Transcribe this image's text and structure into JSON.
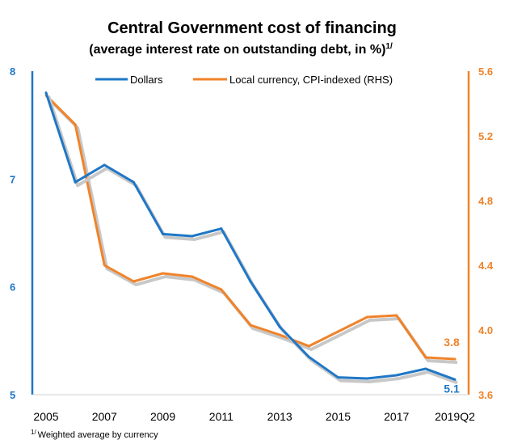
{
  "colors": {
    "dollars": "#1f77c6",
    "local": "#f0832a",
    "shadow": "#c8c8c8",
    "axis_left": "#1f77c6",
    "axis_right": "#f0832a"
  },
  "chart_data": {
    "type": "line",
    "title": "Central Government cost of financing",
    "subtitle": "(average interest rate on outstanding debt, in %)",
    "subtitle_sup": "1/",
    "categories": [
      "2005",
      "2006",
      "2007",
      "2008",
      "2009",
      "2010",
      "2011",
      "2012",
      "2013",
      "2014",
      "2015",
      "2016",
      "2017",
      "2018",
      "2019Q2"
    ],
    "x_tick_labels": [
      "2005",
      "2007",
      "2009",
      "2011",
      "2013",
      "2015",
      "2017",
      "2019Q2"
    ],
    "x_tick_indices": [
      0,
      2,
      4,
      6,
      8,
      10,
      12,
      14
    ],
    "y_left": {
      "min": 5,
      "max": 8,
      "ticks": [
        "5",
        "6",
        "7",
        "8"
      ]
    },
    "y_right": {
      "min": 3.6,
      "max": 5.6,
      "ticks": [
        "3.6",
        "4.0",
        "4.4",
        "4.8",
        "5.2",
        "5.6"
      ]
    },
    "series": [
      {
        "name": "Dollars",
        "axis": "left",
        "values": [
          7.8,
          6.97,
          7.13,
          6.97,
          6.49,
          6.47,
          6.54,
          6.05,
          5.63,
          5.35,
          5.16,
          5.15,
          5.18,
          5.24,
          5.14
        ]
      },
      {
        "name": "Local currency, CPI-indexed (RHS)",
        "axis": "right",
        "values": [
          5.45,
          5.27,
          4.4,
          4.3,
          4.35,
          4.33,
          4.25,
          4.03,
          3.97,
          3.9,
          3.99,
          4.08,
          4.09,
          3.83,
          3.82
        ]
      }
    ],
    "data_labels": [
      {
        "series": 0,
        "text": "5.1"
      },
      {
        "series": 1,
        "text": "3.8"
      }
    ],
    "legend_position": "top",
    "grid": false,
    "footnote_sup": "1/",
    "footnote": "Weighted average by currency"
  }
}
